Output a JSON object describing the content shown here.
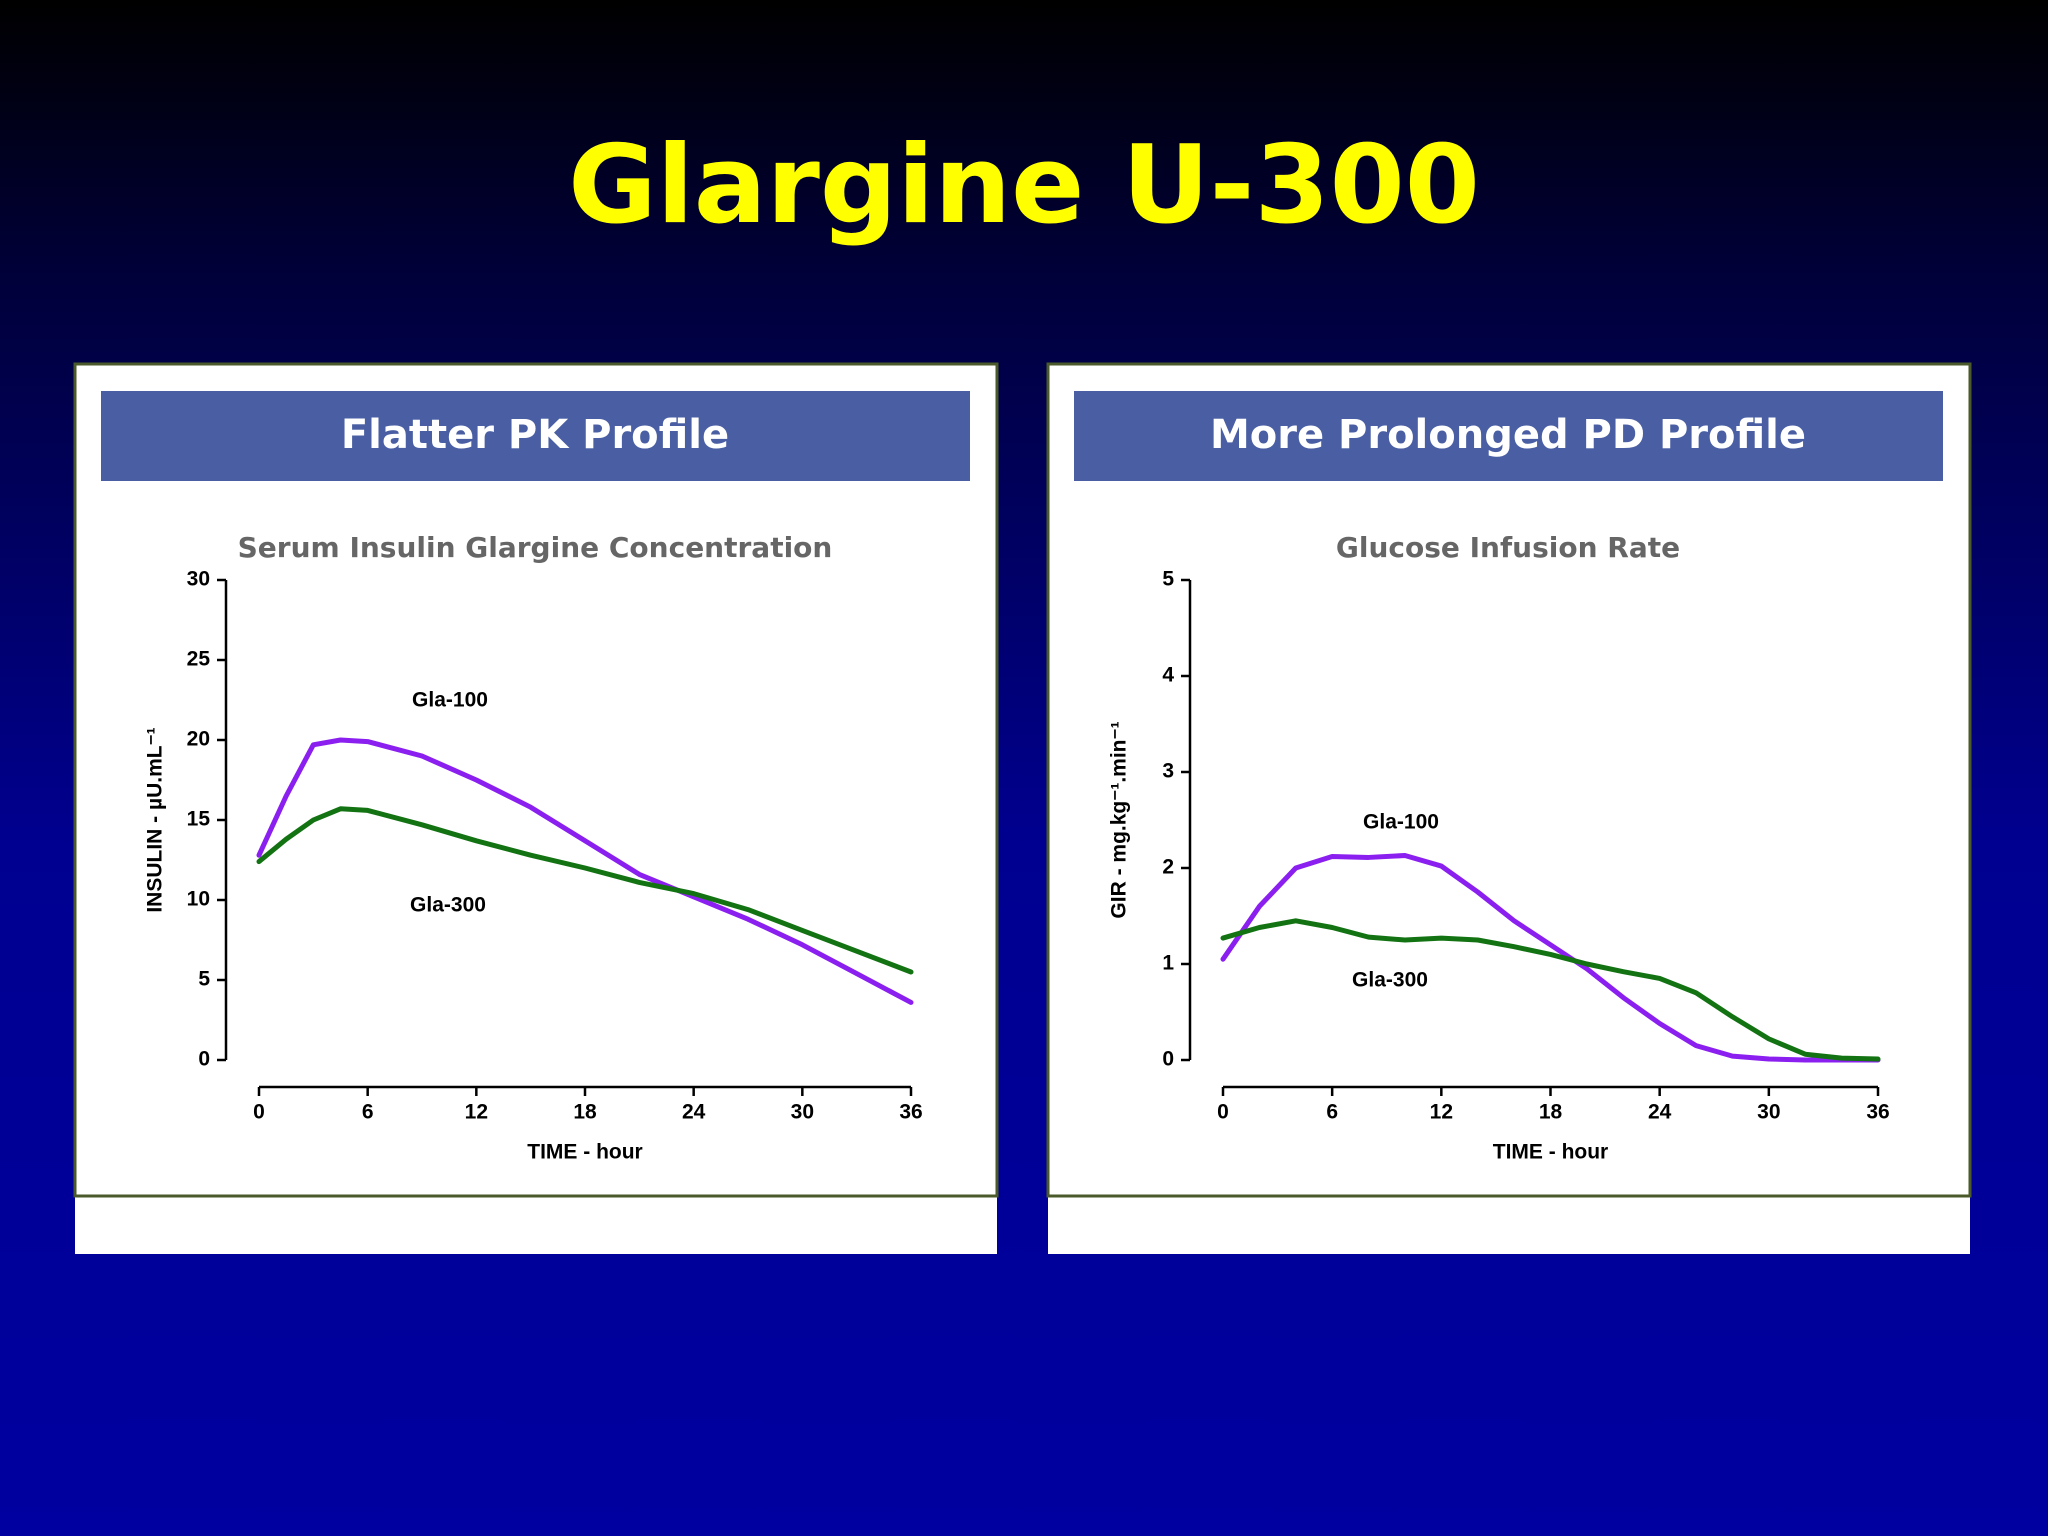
{
  "title": "Glargine U-300",
  "chart_data": [
    {
      "type": "line",
      "header": "Flatter PK Profile",
      "title": "Serum Insulin Glargine Concentration",
      "xlabel": "TIME - hour",
      "ylabel": "INSULIN - µU.mL⁻¹",
      "x": [
        0,
        1.5,
        3,
        4.5,
        6,
        9,
        12,
        15,
        18,
        21,
        24,
        27,
        30,
        33,
        36
      ],
      "series": [
        {
          "name": "Gla-100",
          "color": "#8a1ff0",
          "values": [
            12.8,
            16.5,
            19.7,
            20.0,
            19.9,
            19.0,
            17.5,
            15.8,
            13.7,
            11.6,
            10.2,
            8.8,
            7.2,
            5.4,
            3.6
          ]
        },
        {
          "name": "Gla-300",
          "color": "#137313",
          "values": [
            12.4,
            13.8,
            15.0,
            15.7,
            15.6,
            14.7,
            13.7,
            12.8,
            12.0,
            11.1,
            10.4,
            9.4,
            8.1,
            6.8,
            5.5
          ]
        }
      ],
      "xlim": [
        0,
        36
      ],
      "xticks": [
        0,
        6,
        12,
        18,
        24,
        30,
        36
      ],
      "ylim": [
        0,
        30
      ],
      "yticks": [
        0,
        5,
        10,
        15,
        20,
        25,
        30
      ]
    },
    {
      "type": "line",
      "header": "More Prolonged PD Profile",
      "title": "Glucose Infusion Rate",
      "xlabel": "TIME - hour",
      "ylabel": "GIR - mg.kg⁻¹.min⁻¹",
      "x": [
        0,
        2,
        4,
        6,
        8,
        10,
        12,
        14,
        16,
        18,
        20,
        22,
        24,
        26,
        28,
        30,
        32,
        34,
        36
      ],
      "series": [
        {
          "name": "Gla-100",
          "color": "#8a1ff0",
          "values": [
            1.05,
            1.6,
            2.0,
            2.12,
            2.11,
            2.13,
            2.02,
            1.75,
            1.45,
            1.2,
            0.95,
            0.65,
            0.38,
            0.15,
            0.04,
            0.01,
            0.0,
            0.0,
            0.0
          ]
        },
        {
          "name": "Gla-300",
          "color": "#137313",
          "values": [
            1.27,
            1.38,
            1.45,
            1.38,
            1.28,
            1.25,
            1.27,
            1.25,
            1.18,
            1.1,
            1.0,
            0.92,
            0.85,
            0.7,
            0.45,
            0.22,
            0.06,
            0.02,
            0.01
          ]
        }
      ],
      "xlim": [
        0,
        36
      ],
      "xticks": [
        0,
        6,
        12,
        18,
        24,
        30,
        36
      ],
      "ylim": [
        0,
        5
      ],
      "yticks": [
        0,
        1,
        2,
        3,
        4,
        5
      ]
    }
  ]
}
